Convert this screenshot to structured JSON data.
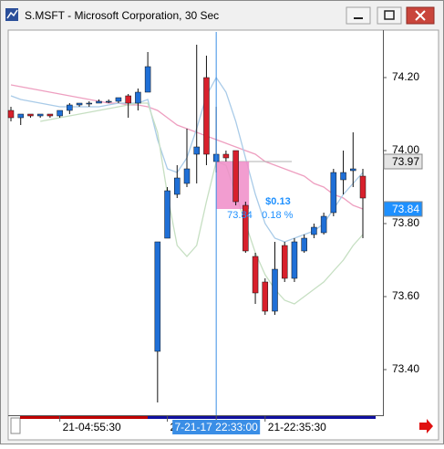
{
  "window": {
    "title": "S.MSFT - Microsoft Corporation, 30 Sec"
  },
  "chart_data": {
    "type": "candlestick",
    "categories": [
      null,
      null,
      null,
      null,
      null,
      "21-04:55:30",
      null,
      null,
      null,
      null,
      null,
      null,
      null,
      null,
      null,
      null,
      "2",
      null,
      null,
      null,
      null,
      "7-21-17 22:33:00",
      null,
      null,
      null,
      null,
      "21-22:35:30",
      null,
      null,
      null,
      null,
      null,
      null,
      null,
      null,
      null,
      null
    ],
    "open": [
      74.11,
      74.09,
      74.1,
      74.095,
      74.1,
      74.095,
      74.11,
      74.125,
      74.13,
      74.13,
      74.135,
      74.135,
      74.15,
      74.13,
      74.16,
      73.45,
      73.76,
      73.88,
      73.91,
      73.99,
      74.2,
      73.97,
      73.99,
      74.0,
      73.85,
      73.71,
      73.64,
      73.56,
      73.74,
      73.65,
      73.725,
      73.77,
      73.775,
      73.83,
      73.92,
      73.945,
      73.93
    ],
    "high": [
      74.12,
      74.1,
      74.1,
      74.1,
      74.1,
      74.11,
      74.13,
      74.13,
      74.135,
      74.14,
      74.14,
      74.145,
      74.155,
      74.17,
      74.27,
      73.75,
      73.9,
      73.96,
      74.06,
      74.29,
      74.26,
      74.12,
      74.0,
      74.0,
      73.86,
      73.72,
      73.65,
      73.75,
      73.75,
      73.76,
      73.77,
      73.8,
      73.83,
      73.95,
      74.0,
      74.05,
      73.95
    ],
    "low": [
      74.08,
      74.07,
      74.09,
      74.09,
      74.09,
      74.09,
      74.1,
      74.12,
      74.12,
      74.13,
      74.13,
      74.13,
      74.09,
      74.11,
      74.16,
      73.31,
      73.76,
      73.87,
      73.9,
      73.91,
      73.96,
      73.94,
      73.97,
      73.85,
      73.72,
      73.58,
      73.55,
      73.55,
      73.64,
      73.64,
      73.72,
      73.76,
      73.77,
      73.82,
      73.88,
      73.9,
      73.76
    ],
    "close": [
      74.09,
      74.1,
      74.095,
      74.1,
      74.095,
      74.11,
      74.125,
      74.13,
      74.13,
      74.135,
      74.135,
      74.145,
      74.13,
      74.16,
      74.23,
      73.75,
      73.89,
      73.925,
      73.95,
      74.01,
      73.99,
      73.99,
      73.98,
      73.86,
      73.725,
      73.61,
      73.56,
      73.675,
      73.65,
      73.75,
      73.76,
      73.79,
      73.82,
      73.94,
      73.94,
      73.95,
      73.87
    ],
    "up_color": "#1f6fd6",
    "down_color": "#d8202c",
    "series": [
      {
        "color": "#ee9fc0",
        "values": [
          74.18,
          74.175,
          74.17,
          74.165,
          74.16,
          74.155,
          74.15,
          74.145,
          74.14,
          74.135,
          74.13,
          74.13,
          74.125,
          74.125,
          74.12,
          74.11,
          74.09,
          74.07,
          74.06,
          74.05,
          74.04,
          74.03,
          74.02,
          74.01,
          74.0,
          73.99,
          73.97,
          73.96,
          73.95,
          73.94,
          73.93,
          73.91,
          73.9,
          73.88,
          73.87,
          73.85,
          73.84
        ]
      },
      {
        "color": "#a9cbe8",
        "values": [
          74.15,
          74.14,
          74.135,
          74.13,
          74.125,
          74.12,
          74.12,
          74.12,
          74.12,
          74.12,
          74.125,
          74.13,
          74.13,
          74.13,
          74.14,
          74.03,
          73.95,
          73.94,
          73.98,
          74.06,
          74.15,
          74.2,
          74.16,
          74.08,
          73.98,
          73.88,
          73.8,
          73.76,
          73.75,
          73.76,
          73.77,
          73.78,
          73.8,
          73.84,
          73.88,
          73.91,
          73.94
        ]
      },
      {
        "color": "#c6dfc2",
        "values": [
          null,
          null,
          null,
          74.08,
          74.085,
          74.09,
          74.095,
          74.1,
          74.105,
          74.11,
          74.115,
          74.12,
          74.125,
          74.13,
          74.13,
          74.05,
          73.88,
          73.74,
          73.71,
          73.74,
          73.86,
          73.97,
          73.96,
          73.88,
          73.8,
          73.72,
          73.66,
          73.62,
          73.59,
          73.58,
          73.6,
          73.62,
          73.64,
          73.67,
          73.7,
          73.74,
          73.77
        ]
      }
    ],
    "ylim": [
      73.275,
      74.325
    ],
    "yticks": [
      {
        "value": 73.4,
        "label": "73.40"
      },
      {
        "value": 73.6,
        "label": "73.60"
      },
      {
        "value": 73.8,
        "label": "73.80"
      },
      {
        "value": 74.0,
        "label": "74.00"
      },
      {
        "value": 74.2,
        "label": "74.20"
      }
    ],
    "price_markers": [
      {
        "value": 73.97,
        "color": "#e4e4e4"
      },
      {
        "value": 73.84,
        "color": "#1e90ff"
      }
    ],
    "measure": {
      "from": 73.97,
      "to": 73.84,
      "change": "$0.13",
      "percent": "0.18 %",
      "color": "#f08cc8"
    }
  }
}
